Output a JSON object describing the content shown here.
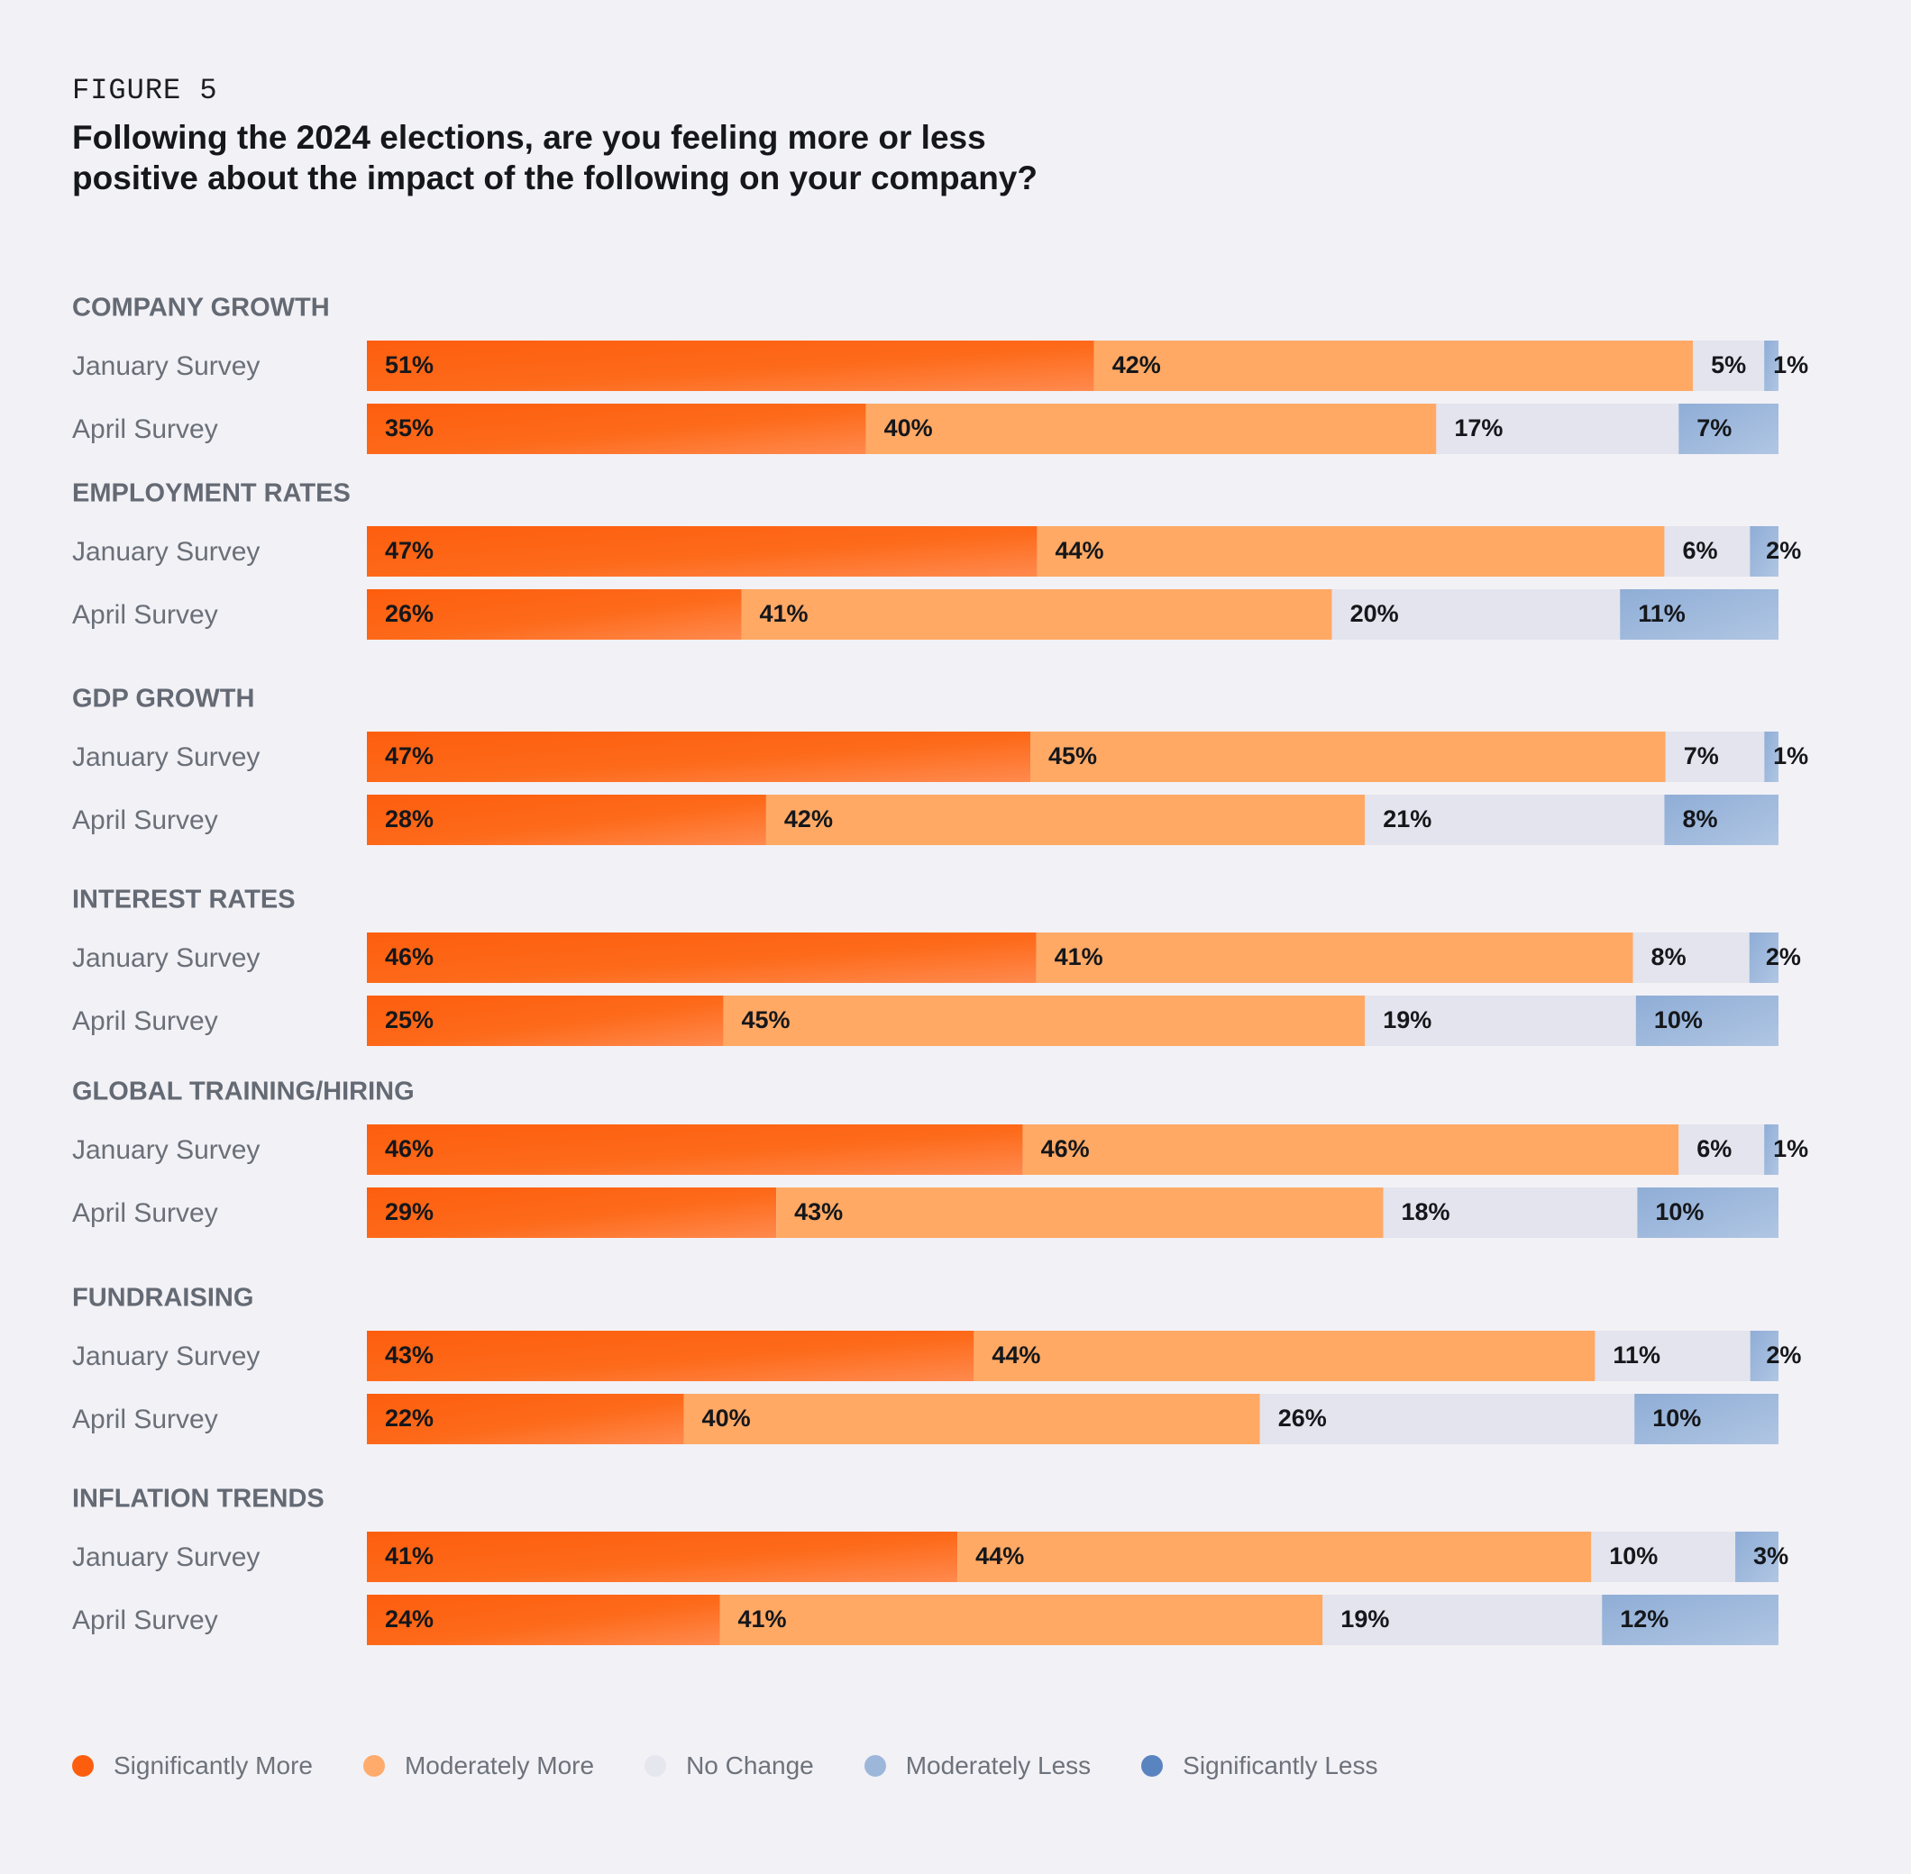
{
  "figure_label": "FIGURE 5",
  "title": "Following the 2024 elections, are you feeling more or less positive about the impact of the following on your company?",
  "colors": {
    "significantly_more": "#fd5e0e",
    "significantly_more_light": "#ff8a4e",
    "moderately_more": "#ffa965",
    "no_change": "#e3e4ed",
    "moderately_less": "#9ab6d9",
    "significantly_less": "#5a84bf"
  },
  "legend": [
    {
      "label": "Significantly More",
      "color": "#fd5e0e"
    },
    {
      "label": "Moderately More",
      "color": "#ffab6b"
    },
    {
      "label": "No Change",
      "color": "#e6e6ee"
    },
    {
      "label": "Moderately Less",
      "color": "#9db7da"
    },
    {
      "label": "Significantly Less",
      "color": "#5a84bf"
    }
  ],
  "chart_data": {
    "type": "bar",
    "orientation": "horizontal",
    "stacked": true,
    "normalized": true,
    "title": "Following the 2024 elections, are you feeling more or less positive about the impact of the following on your company?",
    "series_names": [
      "Significantly More",
      "Moderately More",
      "No Change",
      "Moderately Less",
      "Significantly Less"
    ],
    "row_labels": [
      "January Survey",
      "April Survey"
    ],
    "value_suffix": "%",
    "categories": [
      {
        "name": "COMPANY GROWTH",
        "rows": [
          {
            "label": "January Survey",
            "values": [
              51,
              42,
              5,
              1
            ],
            "labels": [
              "51%",
              "42%",
              "5%",
              "1%"
            ]
          },
          {
            "label": "April Survey",
            "values": [
              35,
              40,
              17,
              7
            ],
            "labels": [
              "35%",
              "40%",
              "17%",
              "7%"
            ]
          }
        ]
      },
      {
        "name": "EMPLOYMENT RATES",
        "rows": [
          {
            "label": "January Survey",
            "values": [
              47,
              44,
              6,
              2
            ],
            "labels": [
              "47%",
              "44%",
              "6%",
              "2%"
            ]
          },
          {
            "label": "April Survey",
            "values": [
              26,
              41,
              20,
              11
            ],
            "labels": [
              "26%",
              "41%",
              "20%",
              "11%"
            ]
          }
        ]
      },
      {
        "name": "GDP GROWTH",
        "rows": [
          {
            "label": "January Survey",
            "values": [
              47,
              45,
              7,
              1
            ],
            "labels": [
              "47%",
              "45%",
              "7%",
              "1%"
            ]
          },
          {
            "label": "April Survey",
            "values": [
              28,
              42,
              21,
              8
            ],
            "labels": [
              "28%",
              "42%",
              "21%",
              "8%"
            ]
          }
        ]
      },
      {
        "name": "INTEREST RATES",
        "rows": [
          {
            "label": "January Survey",
            "values": [
              46,
              41,
              8,
              2
            ],
            "labels": [
              "46%",
              "41%",
              "8%",
              "2%"
            ]
          },
          {
            "label": "April Survey",
            "values": [
              25,
              45,
              19,
              10
            ],
            "labels": [
              "25%",
              "45%",
              "19%",
              "10%"
            ]
          }
        ]
      },
      {
        "name": "GLOBAL TRAINING/HIRING",
        "rows": [
          {
            "label": "January Survey",
            "values": [
              46,
              46,
              6,
              1
            ],
            "labels": [
              "46%",
              "46%",
              "6%",
              "1%"
            ]
          },
          {
            "label": "April Survey",
            "values": [
              29,
              43,
              18,
              10
            ],
            "labels": [
              "29%",
              "43%",
              "18%",
              "10%"
            ]
          }
        ]
      },
      {
        "name": "FUNDRAISING",
        "rows": [
          {
            "label": "January Survey",
            "values": [
              43,
              44,
              11,
              2
            ],
            "labels": [
              "43%",
              "44%",
              "11%",
              "2%"
            ]
          },
          {
            "label": "April Survey",
            "values": [
              22,
              40,
              26,
              10
            ],
            "labels": [
              "22%",
              "40%",
              "26%",
              "10%"
            ]
          }
        ]
      },
      {
        "name": "INFLATION TRENDS",
        "rows": [
          {
            "label": "January Survey",
            "values": [
              41,
              44,
              10,
              3
            ],
            "labels": [
              "41%",
              "44%",
              "10%",
              "3%"
            ]
          },
          {
            "label": "April Survey",
            "values": [
              24,
              41,
              19,
              12
            ],
            "labels": [
              "24%",
              "41%",
              "19%",
              "12%"
            ]
          }
        ]
      }
    ]
  }
}
